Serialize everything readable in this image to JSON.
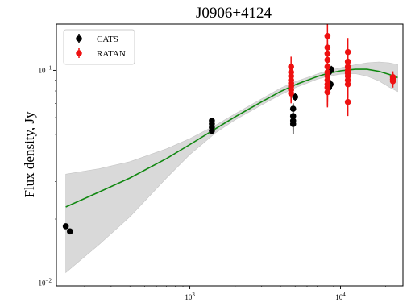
{
  "chart_data": {
    "type": "scatter",
    "title": "J0906+4124",
    "xlabel": "",
    "ylabel": "Flux density, Jy",
    "x_scale": "log",
    "y_scale": "log",
    "xlim": [
      130,
      26000
    ],
    "ylim": [
      0.0097,
      0.165
    ],
    "x_ticks": [
      {
        "value": 1000,
        "base": "10",
        "exp": "3"
      },
      {
        "value": 10000,
        "base": "10",
        "exp": "4"
      }
    ],
    "y_ticks": [
      {
        "value": 0.01,
        "base": "10",
        "exp": "−2"
      },
      {
        "value": 0.1,
        "base": "10",
        "exp": "−1"
      }
    ],
    "grid": false,
    "legend_position": "top-left",
    "series": [
      {
        "name": "CATS",
        "color": "#000000",
        "points": [
          {
            "x": 150,
            "y": 0.0185,
            "yerr": 0.0004
          },
          {
            "x": 160,
            "y": 0.0175,
            "yerr": 0.0004
          },
          {
            "x": 1400,
            "y": 0.058,
            "yerr": 0.0015
          },
          {
            "x": 1400,
            "y": 0.056,
            "yerr": 0.0015
          },
          {
            "x": 1400,
            "y": 0.054,
            "yerr": 0.0015
          },
          {
            "x": 1400,
            "y": 0.052,
            "yerr": 0.0015
          },
          {
            "x": 4850,
            "y": 0.066,
            "yerr": 0.004
          },
          {
            "x": 4850,
            "y": 0.061,
            "yerr": 0.004
          },
          {
            "x": 4850,
            "y": 0.058,
            "yerr": 0.006
          },
          {
            "x": 4850,
            "y": 0.056,
            "yerr": 0.006
          },
          {
            "x": 5000,
            "y": 0.075,
            "yerr": 0.003
          },
          {
            "x": 8400,
            "y": 0.098,
            "yerr": 0.004
          },
          {
            "x": 8400,
            "y": 0.083,
            "yerr": 0.004
          },
          {
            "x": 8600,
            "y": 0.086,
            "yerr": 0.004
          },
          {
            "x": 8700,
            "y": 0.101,
            "yerr": 0.004
          }
        ]
      },
      {
        "name": "RATAN",
        "color": "#ee1111",
        "points": [
          {
            "x": 4700,
            "y": 0.104,
            "yerr": 0.012
          },
          {
            "x": 4700,
            "y": 0.098,
            "yerr": 0.01
          },
          {
            "x": 4700,
            "y": 0.094,
            "yerr": 0.01
          },
          {
            "x": 4700,
            "y": 0.09,
            "yerr": 0.01
          },
          {
            "x": 4700,
            "y": 0.087,
            "yerr": 0.01
          },
          {
            "x": 4700,
            "y": 0.084,
            "yerr": 0.01
          },
          {
            "x": 4700,
            "y": 0.081,
            "yerr": 0.01
          },
          {
            "x": 4700,
            "y": 0.078,
            "yerr": 0.008
          },
          {
            "x": 8200,
            "y": 0.145,
            "yerr": 0.02
          },
          {
            "x": 8200,
            "y": 0.128,
            "yerr": 0.015
          },
          {
            "x": 8200,
            "y": 0.12,
            "yerr": 0.015
          },
          {
            "x": 8200,
            "y": 0.112,
            "yerr": 0.015
          },
          {
            "x": 8200,
            "y": 0.104,
            "yerr": 0.015
          },
          {
            "x": 8200,
            "y": 0.098,
            "yerr": 0.015
          },
          {
            "x": 8200,
            "y": 0.094,
            "yerr": 0.015
          },
          {
            "x": 8200,
            "y": 0.09,
            "yerr": 0.015
          },
          {
            "x": 8200,
            "y": 0.086,
            "yerr": 0.015
          },
          {
            "x": 8200,
            "y": 0.083,
            "yerr": 0.015
          },
          {
            "x": 8200,
            "y": 0.079,
            "yerr": 0.012
          },
          {
            "x": 11200,
            "y": 0.122,
            "yerr": 0.02
          },
          {
            "x": 11200,
            "y": 0.11,
            "yerr": 0.015
          },
          {
            "x": 11200,
            "y": 0.104,
            "yerr": 0.015
          },
          {
            "x": 11200,
            "y": 0.1,
            "yerr": 0.015
          },
          {
            "x": 11200,
            "y": 0.097,
            "yerr": 0.015
          },
          {
            "x": 11200,
            "y": 0.094,
            "yerr": 0.015
          },
          {
            "x": 11200,
            "y": 0.09,
            "yerr": 0.015
          },
          {
            "x": 11200,
            "y": 0.086,
            "yerr": 0.012
          },
          {
            "x": 11200,
            "y": 0.071,
            "yerr": 0.01
          },
          {
            "x": 22300,
            "y": 0.093,
            "yerr": 0.006
          },
          {
            "x": 22300,
            "y": 0.091,
            "yerr": 0.006
          },
          {
            "x": 22300,
            "y": 0.089,
            "yerr": 0.006
          }
        ]
      }
    ],
    "fit": {
      "color": "#118811",
      "band_color": "#d9d9d9",
      "points": [
        [
          150,
          0.0228
        ],
        [
          250,
          0.0268
        ],
        [
          400,
          0.0312
        ],
        [
          700,
          0.0385
        ],
        [
          1000,
          0.0448
        ],
        [
          1500,
          0.0535
        ],
        [
          2000,
          0.0605
        ],
        [
          3000,
          0.0712
        ],
        [
          4000,
          0.0795
        ],
        [
          5000,
          0.0855
        ],
        [
          6000,
          0.0898
        ],
        [
          7000,
          0.0935
        ],
        [
          8000,
          0.0962
        ],
        [
          10000,
          0.0995
        ],
        [
          12500,
          0.1012
        ],
        [
          15000,
          0.1012
        ],
        [
          18000,
          0.099
        ],
        [
          21000,
          0.0958
        ],
        [
          24000,
          0.0925
        ]
      ],
      "band_upper": [
        [
          150,
          0.0325
        ],
        [
          250,
          0.0345
        ],
        [
          400,
          0.0372
        ],
        [
          700,
          0.0428
        ],
        [
          1000,
          0.0478
        ],
        [
          1500,
          0.0555
        ],
        [
          2000,
          0.0625
        ],
        [
          3000,
          0.0735
        ],
        [
          4000,
          0.0825
        ],
        [
          5000,
          0.0885
        ],
        [
          6000,
          0.0925
        ],
        [
          7000,
          0.0962
        ],
        [
          8000,
          0.099
        ],
        [
          10000,
          0.1028
        ],
        [
          12500,
          0.1062
        ],
        [
          15000,
          0.1085
        ],
        [
          18000,
          0.1095
        ],
        [
          21000,
          0.1085
        ],
        [
          24000,
          0.1065
        ]
      ],
      "band_lower": [
        [
          150,
          0.0112
        ],
        [
          250,
          0.0152
        ],
        [
          400,
          0.0205
        ],
        [
          700,
          0.0312
        ],
        [
          1000,
          0.0402
        ],
        [
          1500,
          0.0512
        ],
        [
          2000,
          0.0585
        ],
        [
          3000,
          0.0688
        ],
        [
          4000,
          0.0768
        ],
        [
          5000,
          0.0828
        ],
        [
          6000,
          0.087
        ],
        [
          7000,
          0.0908
        ],
        [
          8000,
          0.0932
        ],
        [
          10000,
          0.096
        ],
        [
          12500,
          0.0965
        ],
        [
          15000,
          0.094
        ],
        [
          18000,
          0.0892
        ],
        [
          21000,
          0.0835
        ],
        [
          24000,
          0.0795
        ]
      ]
    }
  }
}
